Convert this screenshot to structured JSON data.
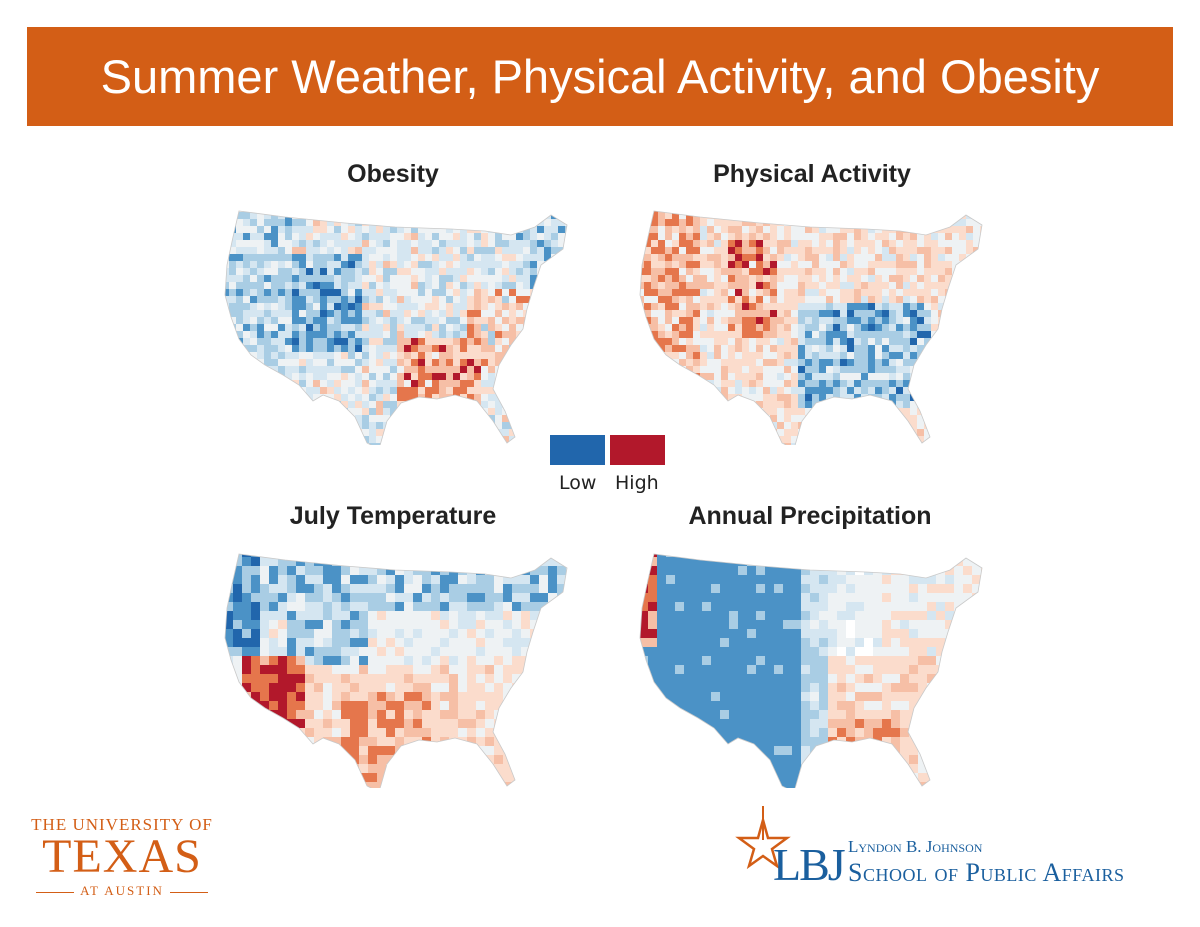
{
  "title": "Summer Weather, Physical Activity, and Obesity",
  "colors": {
    "banner": "#d35e16",
    "low": "#2166ac",
    "high": "#b2182b"
  },
  "maps": [
    {
      "id": "obesity",
      "title": "Obesity",
      "pattern": "obesity"
    },
    {
      "id": "physical",
      "title": "Physical Activity",
      "pattern": "activity"
    },
    {
      "id": "temperature",
      "title": "July Temperature",
      "pattern": "temperature"
    },
    {
      "id": "precipitation",
      "title": "Annual Precipitation",
      "pattern": "precipitation"
    }
  ],
  "legend": {
    "low_label": "Low",
    "high_label": "High"
  },
  "logos": {
    "ut": {
      "line1": "THE UNIVERSITY OF",
      "line2": "TEXAS",
      "line3": "AT AUSTIN"
    },
    "lbj": {
      "mark": "LBJ",
      "name": "Lyndon B. Johnson",
      "school": "School of Public Affairs"
    }
  }
}
